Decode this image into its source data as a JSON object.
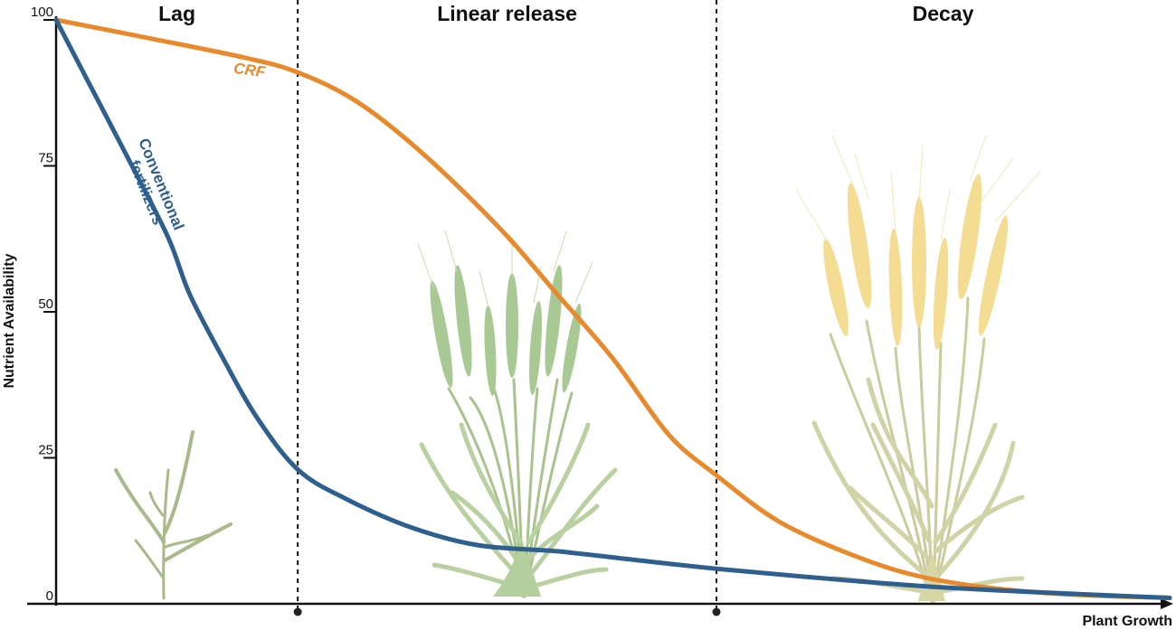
{
  "chart_data": {
    "type": "line",
    "title": "",
    "xlabel": "Plant Growth",
    "ylabel": "Nutrient Availability",
    "ylim": [
      0,
      100
    ],
    "xlim": [
      0,
      100
    ],
    "yticks": [
      {
        "value": 0,
        "label": "0"
      },
      {
        "value": 25,
        "label": "25"
      },
      {
        "value": 50,
        "label": "50"
      },
      {
        "value": 75,
        "label": "75"
      },
      {
        "value": 100,
        "label": "100"
      }
    ],
    "grid": false,
    "phases": [
      {
        "name": "Lag",
        "start": 0,
        "end": 21.7
      },
      {
        "name": "Linear release",
        "start": 21.7,
        "end": 59.3
      },
      {
        "name": "Decay",
        "start": 59.3,
        "end": 100
      }
    ],
    "phase_boundaries": [
      21.7,
      59.3
    ],
    "series": [
      {
        "name": "CRF",
        "label": "CRF",
        "color": "#E8892B",
        "x": [
          0,
          8,
          17,
          21.7,
          27,
          33,
          40,
          45,
          50,
          55,
          59.3,
          65,
          72,
          78,
          85,
          92,
          100
        ],
        "y": [
          100,
          97,
          93.5,
          91,
          86,
          77,
          64,
          53,
          42,
          29,
          22,
          14,
          8,
          4.5,
          2.5,
          1.5,
          1
        ]
      },
      {
        "name": "Conventional fertilizers",
        "label": "Conventional fertilizers",
        "color": "#2E5F8E",
        "x": [
          0,
          3,
          6,
          10,
          12,
          15,
          18,
          21.7,
          26,
          32,
          38,
          45,
          52,
          59.3,
          68,
          78,
          88,
          100
        ],
        "y": [
          100,
          89,
          78,
          63,
          53,
          42,
          32,
          23,
          18,
          13,
          10,
          9,
          7.5,
          6,
          4.5,
          3,
          2,
          1
        ]
      }
    ],
    "stages": [
      "seedling",
      "tillering wheat",
      "mature wheat"
    ]
  },
  "colors": {
    "axis": "#111111",
    "plant_green": "#A9C28E",
    "plant_stem_mature": "#C8CC98",
    "grain_yellow": "#F4DC92"
  }
}
